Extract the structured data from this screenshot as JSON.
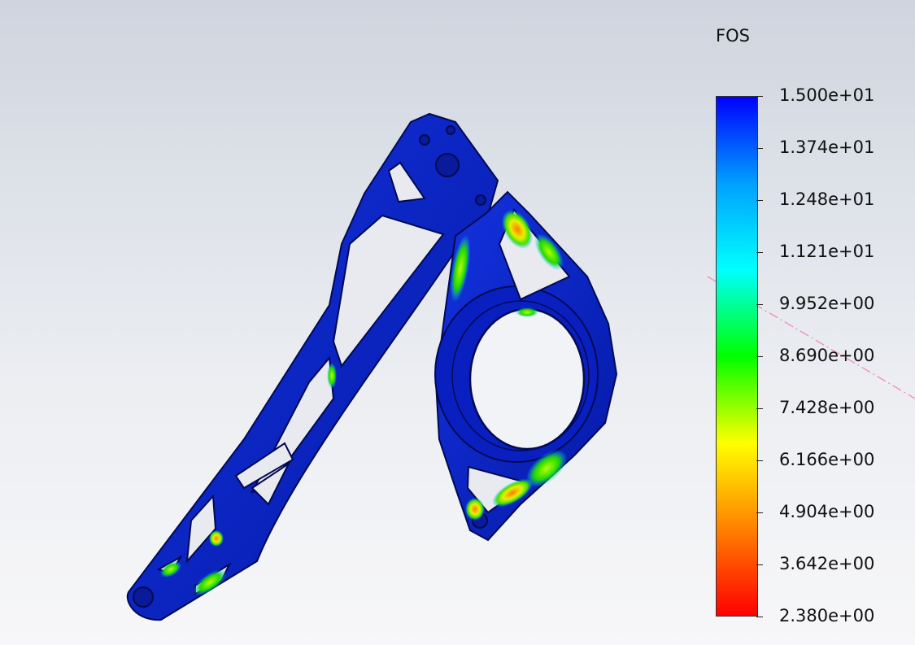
{
  "legend": {
    "title": "FOS",
    "labels": [
      "1.500e+01",
      "1.374e+01",
      "1.248e+01",
      "1.121e+01",
      "9.952e+00",
      "8.690e+00",
      "7.428e+00",
      "6.166e+00",
      "4.904e+00",
      "3.642e+00",
      "2.380e+00"
    ],
    "colors": {
      "max": "#0000ff",
      "high": "#00a0ff",
      "upper_mid": "#00ffff",
      "mid": "#00ff00",
      "lower_mid": "#ffff00",
      "low": "#ff8000",
      "min": "#ff0000"
    }
  },
  "model": {
    "base_color": "#0b22c8",
    "dark_outline": "#020a52"
  }
}
